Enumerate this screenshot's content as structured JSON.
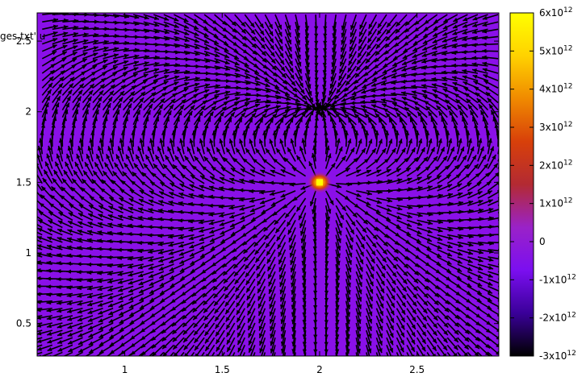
{
  "chart_data": {
    "type": "heatmap",
    "subtype": "vector-field-over-color-map",
    "xlim": [
      0.55,
      2.92
    ],
    "ylim": [
      0.27,
      2.7
    ],
    "x_ticks": [
      "1",
      "1.5",
      "2",
      "2.5"
    ],
    "x_tick_values": [
      1,
      1.5,
      2,
      2.5
    ],
    "y_ticks": [
      "0.5",
      "1",
      "1.5",
      "2",
      "2.5"
    ],
    "y_tick_values": [
      0.5,
      1,
      1.5,
      2,
      2.5
    ],
    "colorbar": {
      "min": -3000000000000.0,
      "max": 6000000000000.0,
      "tick_values": [
        6000000000000.0,
        5000000000000.0,
        4000000000000.0,
        3000000000000.0,
        2000000000000.0,
        1000000000000.0,
        0,
        -1000000000000.0,
        -2000000000000.0,
        -3000000000000.0
      ],
      "tick_labels": [
        {
          "base": "6x10",
          "exp": "12"
        },
        {
          "base": "5x10",
          "exp": "12"
        },
        {
          "base": "4x10",
          "exp": "12"
        },
        {
          "base": "3x10",
          "exp": "12"
        },
        {
          "base": "2x10",
          "exp": "12"
        },
        {
          "base": "1x10",
          "exp": "12"
        },
        {
          "base": "0",
          "exp": ""
        },
        {
          "base": "-1x10",
          "exp": "12"
        },
        {
          "base": "-2x10",
          "exp": "12"
        },
        {
          "base": "-3x10",
          "exp": "12"
        }
      ],
      "palette": [
        "#000000",
        "#3a0099",
        "#7b0ff0",
        "#9a22c8",
        "#b32a33",
        "#d8400a",
        "#f08a00",
        "#ffd200",
        "#ffff00"
      ]
    },
    "sources": [
      {
        "x": 2.0,
        "y": 1.5,
        "sign": "positive"
      },
      {
        "x": 2.0,
        "y": 2.02,
        "sign": "negative"
      }
    ],
    "background_color": "#8a10e8",
    "arrow_color": "#000000",
    "peak_color": "#ffff00",
    "overlay_text": "ges.txt' u"
  }
}
